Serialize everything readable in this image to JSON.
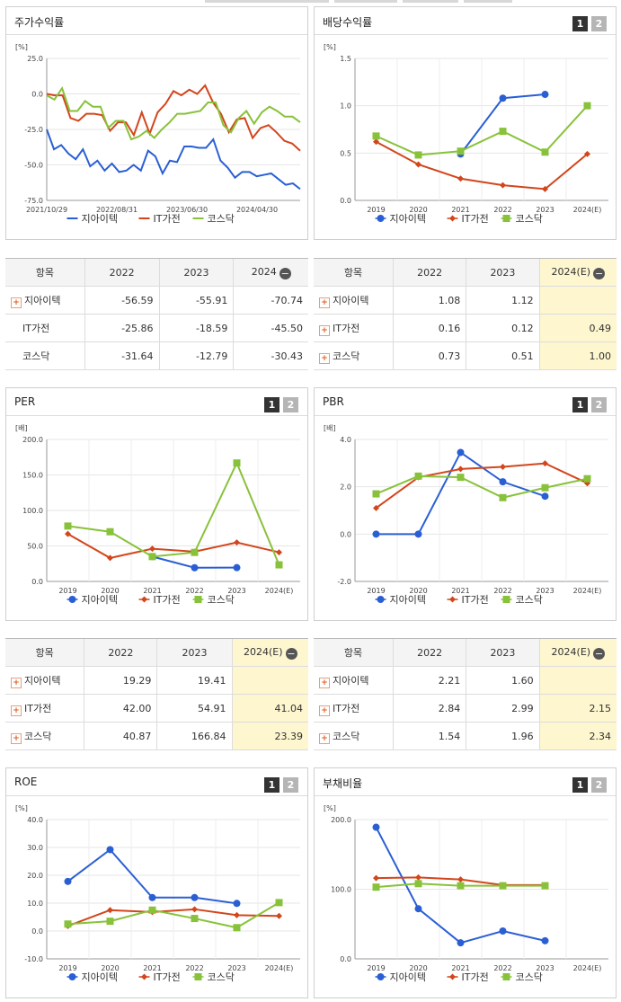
{
  "legend": [
    {
      "name": "지아이텍",
      "color": "#2a5fd4",
      "marker": "circle"
    },
    {
      "name": "IT가전",
      "color": "#d2461c",
      "marker": "diamond"
    },
    {
      "name": "코스닥",
      "color": "#88c23a",
      "marker": "square"
    }
  ],
  "pager": {
    "one": "1",
    "two": "2"
  },
  "minus_icon": "−",
  "plus_icon": "+",
  "panels": {
    "stock": {
      "title": "주가수익률"
    },
    "dividend": {
      "title": "배당수익률"
    },
    "per": {
      "title": "PER"
    },
    "pbr": {
      "title": "PBR"
    },
    "roe": {
      "title": "ROE"
    },
    "debt": {
      "title": "부채비율"
    }
  },
  "tables": {
    "stock": {
      "headers": [
        "항목",
        "2022",
        "2023",
        "2024"
      ],
      "rows": [
        {
          "name": "지아이텍",
          "plus": true,
          "values": [
            "-56.59",
            "-55.91",
            "-70.74"
          ]
        },
        {
          "name": "IT가전",
          "plus": false,
          "values": [
            "-25.86",
            "-18.59",
            "-45.50"
          ]
        },
        {
          "name": "코스닥",
          "plus": false,
          "values": [
            "-31.64",
            "-12.79",
            "-30.43"
          ]
        }
      ]
    },
    "dividend": {
      "headers": [
        "항목",
        "2022",
        "2023",
        "2024(E)"
      ],
      "rows": [
        {
          "name": "지아이텍",
          "plus": true,
          "values": [
            "1.08",
            "1.12",
            ""
          ]
        },
        {
          "name": "IT가전",
          "plus": true,
          "values": [
            "0.16",
            "0.12",
            "0.49"
          ]
        },
        {
          "name": "코스닥",
          "plus": true,
          "values": [
            "0.73",
            "0.51",
            "1.00"
          ]
        }
      ]
    },
    "per": {
      "headers": [
        "항목",
        "2022",
        "2023",
        "2024(E)"
      ],
      "rows": [
        {
          "name": "지아이텍",
          "plus": true,
          "values": [
            "19.29",
            "19.41",
            ""
          ]
        },
        {
          "name": "IT가전",
          "plus": true,
          "values": [
            "42.00",
            "54.91",
            "41.04"
          ]
        },
        {
          "name": "코스닥",
          "plus": true,
          "values": [
            "40.87",
            "166.84",
            "23.39"
          ]
        }
      ]
    },
    "pbr": {
      "headers": [
        "항목",
        "2022",
        "2023",
        "2024(E)"
      ],
      "rows": [
        {
          "name": "지아이텍",
          "plus": true,
          "values": [
            "2.21",
            "1.60",
            ""
          ]
        },
        {
          "name": "IT가전",
          "plus": true,
          "values": [
            "2.84",
            "2.99",
            "2.15"
          ]
        },
        {
          "name": "코스닥",
          "plus": true,
          "values": [
            "1.54",
            "1.96",
            "2.34"
          ]
        }
      ]
    }
  },
  "chart_data": [
    {
      "type": "line",
      "id": "stock",
      "unit": "[%]",
      "yticks": [
        "25.0",
        "0.0",
        "-25.0",
        "-50.0",
        "-75.0"
      ],
      "ylim": [
        -75,
        25
      ],
      "xticks": [
        "2021/10/29",
        "2022/08/31",
        "2023/06/30",
        "2024/04/30"
      ],
      "x_count": 48,
      "series": [
        {
          "name": "지아이텍",
          "values": [
            -25,
            -39,
            -36,
            -42,
            -46,
            -39,
            -51,
            -47,
            -54,
            -49,
            -55,
            -54,
            -50,
            -54,
            -40,
            -44,
            -56,
            -47,
            -48,
            -37,
            -37,
            -38,
            -38,
            -32,
            -47,
            -52,
            -59,
            -55,
            -55,
            -58,
            -57,
            -56,
            -60,
            -64,
            -63,
            -67
          ]
        },
        {
          "name": "IT가전",
          "values": [
            0,
            -1,
            -1,
            -17,
            -19,
            -14,
            -14,
            -15,
            -26,
            -20,
            -20,
            -29,
            -13,
            -28,
            -13,
            -7,
            2,
            -1,
            3,
            0,
            6,
            -6,
            -14,
            -27,
            -18,
            -17,
            -31,
            -24,
            -22,
            -27,
            -33,
            -35,
            -40
          ]
        },
        {
          "name": "코스닥",
          "values": [
            -1,
            -4,
            4,
            -12,
            -12,
            -5,
            -9,
            -9,
            -24,
            -19,
            -19,
            -32,
            -30,
            -26,
            -31,
            -25,
            -20,
            -14,
            -14,
            -13,
            -12,
            -6,
            -6,
            -22,
            -27,
            -17,
            -12,
            -21,
            -13,
            -9,
            -12,
            -16,
            -16,
            -20
          ]
        }
      ]
    },
    {
      "type": "line",
      "id": "dividend",
      "unit": "[%]",
      "yticks": [
        "1.5",
        "1.0",
        "0.5",
        "0.0"
      ],
      "ylim": [
        0,
        1.5
      ],
      "categories": [
        "2019",
        "2020",
        "2021",
        "2022",
        "2023",
        "2024(E)"
      ],
      "series": [
        {
          "name": "지아이텍",
          "values": [
            null,
            null,
            0.49,
            1.08,
            1.12,
            null
          ]
        },
        {
          "name": "IT가전",
          "values": [
            0.62,
            0.38,
            0.23,
            0.16,
            0.12,
            0.49
          ]
        },
        {
          "name": "코스닥",
          "values": [
            0.68,
            0.48,
            0.52,
            0.73,
            0.51,
            1.0
          ]
        }
      ]
    },
    {
      "type": "line",
      "id": "per",
      "unit": "[배]",
      "yticks": [
        "200.0",
        "150.0",
        "100.0",
        "50.0",
        "0.0"
      ],
      "ylim": [
        0,
        200
      ],
      "categories": [
        "2019",
        "2020",
        "2021",
        "2022",
        "2023",
        "2024(E)"
      ],
      "series": [
        {
          "name": "지아이텍",
          "values": [
            null,
            null,
            35,
            19.29,
            19.41,
            null
          ]
        },
        {
          "name": "IT가전",
          "values": [
            67,
            33,
            46,
            42.0,
            54.91,
            41.04
          ]
        },
        {
          "name": "코스닥",
          "values": [
            78,
            70,
            35,
            40.87,
            166.84,
            23.39
          ]
        }
      ]
    },
    {
      "type": "line",
      "id": "pbr",
      "unit": "[배]",
      "yticks": [
        "4.0",
        "2.0",
        "0.0",
        "-2.0"
      ],
      "ylim": [
        -2,
        4
      ],
      "categories": [
        "2019",
        "2020",
        "2021",
        "2022",
        "2023",
        "2024(E)"
      ],
      "series": [
        {
          "name": "지아이텍",
          "values": [
            0,
            0,
            3.45,
            2.21,
            1.6,
            null
          ]
        },
        {
          "name": "IT가전",
          "values": [
            1.1,
            2.4,
            2.75,
            2.84,
            2.99,
            2.15
          ]
        },
        {
          "name": "코스닥",
          "values": [
            1.7,
            2.45,
            2.4,
            1.54,
            1.96,
            2.34
          ]
        }
      ]
    },
    {
      "type": "line",
      "id": "roe",
      "unit": "[%]",
      "yticks": [
        "40.0",
        "30.0",
        "20.0",
        "10.0",
        "0.0",
        "-10.0"
      ],
      "ylim": [
        -10,
        40
      ],
      "categories": [
        "2019",
        "2020",
        "2021",
        "2022",
        "2023",
        "2024(E)"
      ],
      "series": [
        {
          "name": "지아이텍",
          "values": [
            17.8,
            29.2,
            12.0,
            12.0,
            9.9,
            null
          ]
        },
        {
          "name": "IT가전",
          "values": [
            1.8,
            7.5,
            6.8,
            7.8,
            5.7,
            5.4
          ]
        },
        {
          "name": "코스닥",
          "values": [
            2.5,
            3.5,
            7.5,
            4.5,
            1.2,
            10.2
          ]
        }
      ]
    },
    {
      "type": "line",
      "id": "debt",
      "unit": "[%]",
      "yticks": [
        "200.0",
        "100.0",
        "0.0"
      ],
      "ylim": [
        0,
        200
      ],
      "categories": [
        "2019",
        "2020",
        "2021",
        "2022",
        "2023",
        "2024(E)"
      ],
      "series": [
        {
          "name": "지아이텍",
          "values": [
            189,
            72,
            23,
            40,
            26,
            null
          ]
        },
        {
          "name": "IT가전",
          "values": [
            116,
            117,
            114,
            106,
            106,
            null
          ]
        },
        {
          "name": "코스닥",
          "values": [
            103,
            108,
            105,
            105,
            105,
            null
          ]
        }
      ]
    }
  ]
}
